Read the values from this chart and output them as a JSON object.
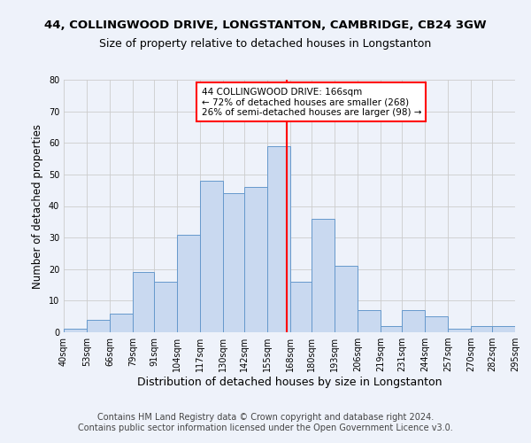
{
  "title": "44, COLLINGWOOD DRIVE, LONGSTANTON, CAMBRIDGE, CB24 3GW",
  "subtitle": "Size of property relative to detached houses in Longstanton",
  "xlabel": "Distribution of detached houses by size in Longstanton",
  "ylabel": "Number of detached properties",
  "footer_lines": [
    "Contains HM Land Registry data © Crown copyright and database right 2024.",
    "Contains public sector information licensed under the Open Government Licence v3.0."
  ],
  "bin_edges": [
    40,
    53,
    66,
    79,
    91,
    104,
    117,
    130,
    142,
    155,
    168,
    180,
    193,
    206,
    219,
    231,
    244,
    257,
    270,
    282,
    295
  ],
  "bar_heights": [
    1,
    4,
    6,
    19,
    16,
    31,
    48,
    44,
    46,
    59,
    16,
    36,
    21,
    7,
    2,
    7,
    5,
    1,
    2,
    2
  ],
  "bar_color": "#c9d9f0",
  "bar_edge_color": "#6699cc",
  "vline_x": 166,
  "vline_color": "red",
  "annotation_title": "44 COLLINGWOOD DRIVE: 166sqm",
  "annotation_line1": "← 72% of detached houses are smaller (268)",
  "annotation_line2": "26% of semi-detached houses are larger (98) →",
  "annotation_box_color": "white",
  "annotation_box_edge_color": "red",
  "ylim": [
    0,
    80
  ],
  "yticks": [
    0,
    10,
    20,
    30,
    40,
    50,
    60,
    70,
    80
  ],
  "background_color": "#eef2fa",
  "plot_background_color": "#eef2fa",
  "grid_color": "#cccccc",
  "title_fontsize": 9.5,
  "subtitle_fontsize": 9,
  "xlabel_fontsize": 9,
  "ylabel_fontsize": 8.5,
  "tick_fontsize": 7,
  "footer_fontsize": 7
}
